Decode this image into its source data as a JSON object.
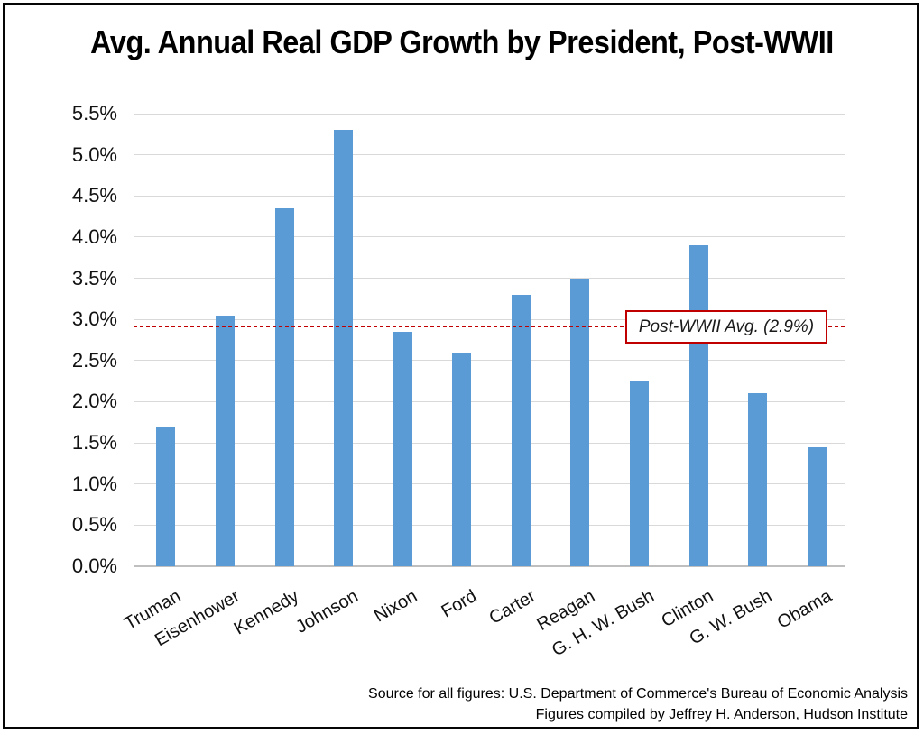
{
  "chart_data": {
    "type": "bar",
    "title": "Avg. Annual Real GDP Growth by President, Post-WWII",
    "categories": [
      "Truman",
      "Eisenhower",
      "Kennedy",
      "Johnson",
      "Nixon",
      "Ford",
      "Carter",
      "Reagan",
      "G. H. W. Bush",
      "Clinton",
      "G. W. Bush",
      "Obama"
    ],
    "values": [
      1.7,
      3.05,
      4.35,
      5.3,
      2.85,
      2.6,
      3.3,
      3.5,
      2.25,
      3.9,
      2.1,
      1.45
    ],
    "xlabel": "",
    "ylabel": "",
    "ylim": [
      0,
      5.5
    ],
    "ytick_step": 0.5,
    "ytick_format": "0.0%",
    "grid": true,
    "legend": "none",
    "average_line": {
      "value": 2.9,
      "label": "Post-WWII Avg. (2.9%)"
    },
    "source_lines": [
      "Source for all figures: U.S. Department of Commerce's Bureau of Economic Analysis",
      "Figures compiled by Jeffrey H. Anderson, Hudson Institute"
    ],
    "colors": {
      "bar": "#5B9BD5",
      "gridline": "#D9D9D9",
      "axis_line": "#BFBFBF",
      "average_line": "#C00000",
      "annotation_border": "#C00000",
      "text": "#000000"
    }
  }
}
